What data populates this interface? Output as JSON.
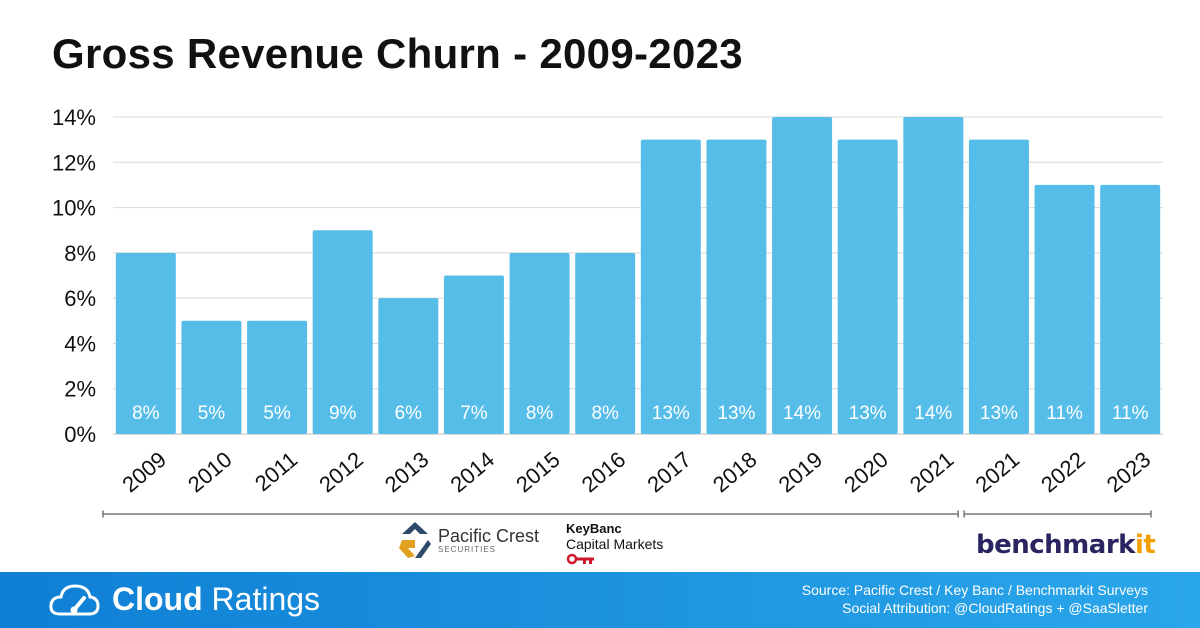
{
  "chart_data": {
    "type": "bar",
    "title": "Gross Revenue Churn - 2009-2023",
    "categories": [
      "2009",
      "2010",
      "2011",
      "2012",
      "2013",
      "2014",
      "2015",
      "2016",
      "2017",
      "2018",
      "2019",
      "2020",
      "2021",
      "2021",
      "2022",
      "2023"
    ],
    "values": [
      8,
      5,
      5,
      9,
      6,
      7,
      8,
      8,
      13,
      13,
      14,
      13,
      14,
      13,
      11,
      11
    ],
    "value_labels": [
      "8%",
      "5%",
      "5%",
      "9%",
      "6%",
      "7%",
      "8%",
      "8%",
      "13%",
      "13%",
      "14%",
      "13%",
      "14%",
      "13%",
      "11%",
      "11%"
    ],
    "yticks": [
      "0%",
      "2%",
      "4%",
      "6%",
      "8%",
      "10%",
      "12%",
      "14%"
    ],
    "ylim": [
      0,
      14
    ],
    "grid": true,
    "bar_color": "#56bde9",
    "grid_color": "#d8d8d8",
    "bracket_color": "#777777",
    "source_groups": [
      {
        "name": "Pacific Crest / Key Banc",
        "categories": [
          "2009",
          "2010",
          "2011",
          "2012",
          "2013",
          "2014",
          "2015",
          "2016",
          "2017",
          "2018",
          "2019",
          "2020",
          "2021"
        ]
      },
      {
        "name": "Benchmarkit",
        "categories": [
          "2021",
          "2022",
          "2023"
        ]
      }
    ]
  },
  "logos": {
    "pacific_crest": {
      "name": "Pacific Crest",
      "sub": "SECURITIES"
    },
    "keybanc": {
      "name": "KeyBanc",
      "sub": "Capital Markets"
    },
    "benchmarkit": {
      "main": "benchmark",
      "suffix": "it"
    }
  },
  "footer": {
    "brand_bold": "Cloud",
    "brand_light": "Ratings",
    "source_line": "Source: Pacific Crest / Key Banc / Benchmarkit Surveys",
    "attribution_line": "Social Attribution: @CloudRatings + @SaaSletter"
  }
}
